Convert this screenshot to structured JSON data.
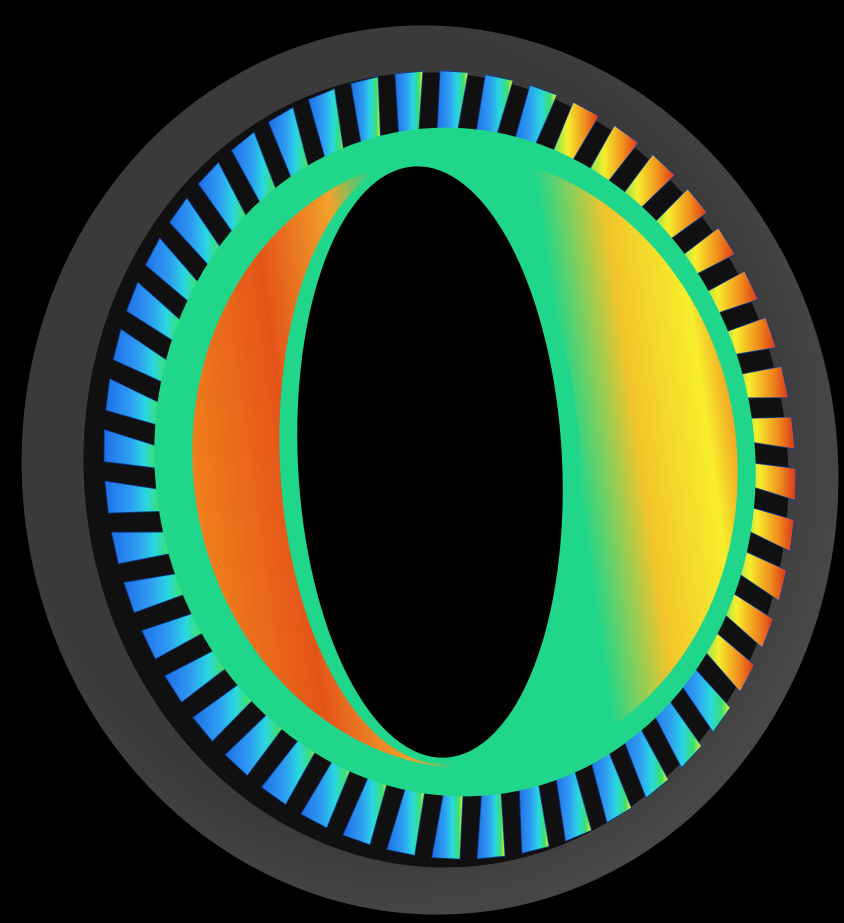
{
  "scene": {
    "subject": "turbine-blade-ring",
    "blade_count": 48,
    "colors": {
      "background": "#000000",
      "casing_light": "#4a4a4a",
      "casing_dark": "#1c1c1c",
      "hub_green": "#1fd68a",
      "hub_green_dark": "#0fb870",
      "blade_blue": "#1f6fe8",
      "blade_blue_light": "#2f9cf2",
      "blade_cyan": "#29d7e0",
      "blade_green": "#3be070",
      "blade_yellow": "#f6ee2c",
      "blade_orange": "#f08a1c",
      "blade_red": "#d8361a"
    }
  }
}
